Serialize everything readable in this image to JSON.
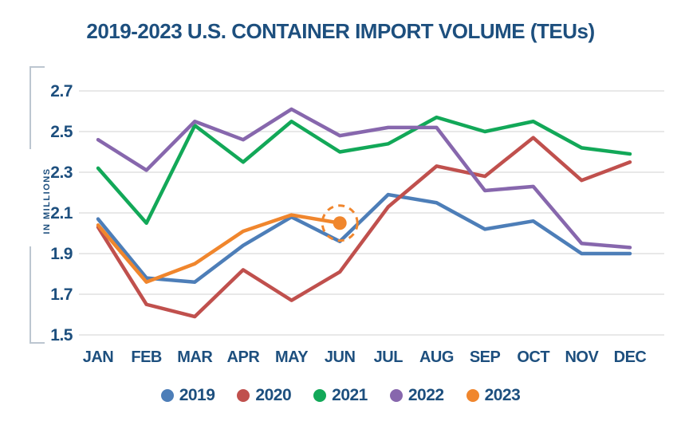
{
  "title": "2019-2023 U.S. CONTAINER IMPORT VOLUME (TEUs)",
  "colors": {
    "text_navy": "#1d4f7e",
    "gridline": "#e8e8e8",
    "axis_bracket": "#bcc6d0",
    "background": "#ffffff"
  },
  "chart_data": {
    "type": "line",
    "title": "2019-2023 U.S. CONTAINER IMPORT VOLUME (TEUs)",
    "xlabel": "",
    "ylabel": "IN MILLIONS",
    "ylim": [
      1.5,
      2.7
    ],
    "y_ticks": [
      2.7,
      2.5,
      2.3,
      2.1,
      1.9,
      1.7,
      1.5
    ],
    "y_tick_labels": [
      "2.7",
      "2.5",
      "2.3",
      "2.1",
      "1.9",
      "1.7",
      "1.5"
    ],
    "grid": "horizontal",
    "legend_position": "bottom",
    "categories": [
      "JAN",
      "FEB",
      "MAR",
      "APR",
      "MAY",
      "JUN",
      "JUL",
      "AUG",
      "SEP",
      "OCT",
      "NOV",
      "DEC"
    ],
    "series": [
      {
        "name": "2019",
        "color": "#4d7eb8",
        "values": [
          2.07,
          1.78,
          1.76,
          1.94,
          2.08,
          1.96,
          2.19,
          2.15,
          2.02,
          2.06,
          1.9,
          1.9
        ]
      },
      {
        "name": "2020",
        "color": "#c0504d",
        "values": [
          2.03,
          1.65,
          1.59,
          1.82,
          1.67,
          1.81,
          2.13,
          2.33,
          2.28,
          2.47,
          2.26,
          2.35
        ]
      },
      {
        "name": "2021",
        "color": "#12a858",
        "values": [
          2.32,
          2.05,
          2.53,
          2.35,
          2.55,
          2.4,
          2.44,
          2.57,
          2.5,
          2.55,
          2.42,
          2.39
        ]
      },
      {
        "name": "2022",
        "color": "#8767ad",
        "values": [
          2.46,
          2.31,
          2.55,
          2.46,
          2.61,
          2.48,
          2.52,
          2.52,
          2.21,
          2.23,
          1.95,
          1.93
        ]
      },
      {
        "name": "2023",
        "color": "#f0862d",
        "values": [
          2.04,
          1.76,
          1.85,
          2.01,
          2.09,
          2.05
        ],
        "end_marker": true
      }
    ],
    "annotation": {
      "type": "dashed-circle-highlight",
      "series": "2023",
      "category": "JUN",
      "value": 2.05,
      "color": "#f0862d"
    }
  }
}
